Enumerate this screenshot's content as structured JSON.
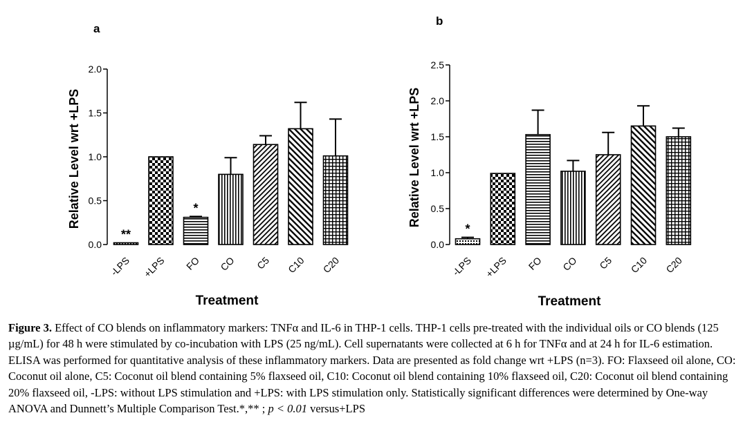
{
  "chart_data": [
    {
      "type": "bar",
      "panel_label": "a",
      "categories": [
        "-LPS",
        "+LPS",
        "FO",
        "CO",
        "C5",
        "C10",
        "C20"
      ],
      "values": [
        0.02,
        1.0,
        0.31,
        0.8,
        1.14,
        1.32,
        1.01
      ],
      "errors": [
        0.0,
        0.0,
        0.01,
        0.19,
        0.1,
        0.3,
        0.42
      ],
      "annotations": [
        "**",
        "",
        "*",
        "",
        "",
        "",
        ""
      ],
      "patterns": [
        "dots",
        "checker",
        "horizontal",
        "vertical",
        "diagonal",
        "diagonal-wide",
        "grid"
      ],
      "xlabel": "Treatment",
      "ylabel": "Relative Level wrt +LPS",
      "ylim": [
        0,
        2.0
      ],
      "yticks": [
        "0.0",
        "0.5",
        "1.0",
        "1.5",
        "2.0"
      ],
      "ytick_values": [
        0,
        0.5,
        1.0,
        1.5,
        2.0
      ]
    },
    {
      "type": "bar",
      "panel_label": "b",
      "categories": [
        "-LPS",
        "+LPS",
        "FO",
        "CO",
        "C5",
        "C10",
        "C20"
      ],
      "values": [
        0.08,
        0.99,
        1.53,
        1.02,
        1.25,
        1.65,
        1.5
      ],
      "errors": [
        0.02,
        0.0,
        0.34,
        0.15,
        0.31,
        0.28,
        0.12
      ],
      "annotations": [
        "*",
        "",
        "",
        "",
        "",
        "",
        ""
      ],
      "patterns": [
        "dots",
        "checker",
        "horizontal",
        "vertical",
        "diagonal",
        "diagonal-wide",
        "grid"
      ],
      "xlabel": "Treatment",
      "ylabel": "Relative Level wrt +LPS",
      "ylim": [
        0,
        2.5
      ],
      "yticks": [
        "0.0",
        "0.5",
        "1.0",
        "1.5",
        "2.0",
        "2.5"
      ],
      "ytick_values": [
        0,
        0.5,
        1.0,
        1.5,
        2.0,
        2.5
      ]
    }
  ],
  "caption": {
    "label": "Figure 3.",
    "text": " Effect of CO blends on inflammatory markers: TNFα and IL-6 in THP-1 cells. THP-1 cells pre-treated with the individual oils or CO blends (125 µg/mL) for 48 h were stimulated by co-incubation with LPS (25 ng/mL). Cell supernatants were collected at 6 h for TNFα and at 24 h for IL-6 estimation. ELISA was performed for quantitative analysis of these inflammatory markers. Data are presented as fold change wrt +LPS (n=3). FO: Flaxseed oil alone, CO: Coconut oil alone, C5: Coconut oil blend containing 5% flaxseed oil, C10: Coconut oil blend containing 10% flaxseed oil, C20: Coconut oil blend containing 20% flaxseed oil, -LPS: without LPS stimulation and +LPS: with LPS stimulation only. Statistically significant differences were determined by One-way ANOVA and Dunnett’s Multiple Comparison Test.*,** ; ",
    "p_symbol": "p",
    "p_condition": " < 0.01",
    "suffix": " versus+LPS"
  },
  "colors": {
    "ink": "#000000",
    "background": "#ffffff"
  }
}
